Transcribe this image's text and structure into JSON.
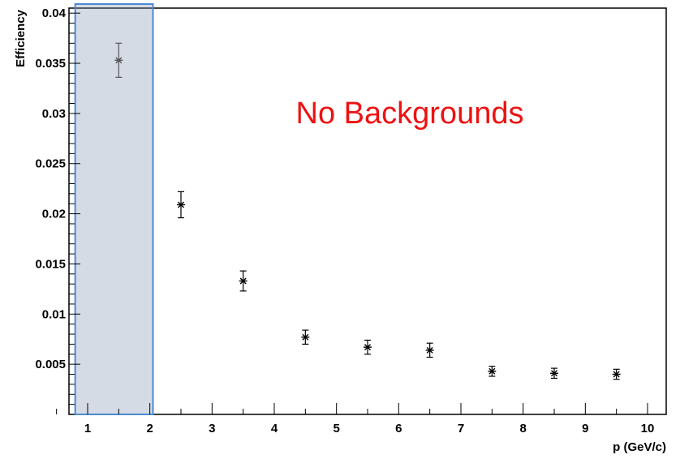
{
  "chart_data": {
    "type": "scatter",
    "xlabel": "p (GeV/c)",
    "ylabel": "Efficiency",
    "xlim": [
      0.7,
      10.3
    ],
    "ylim": [
      0,
      0.0405
    ],
    "x_ticks": [
      "1",
      "2",
      "3",
      "4",
      "5",
      "6",
      "7",
      "8",
      "9",
      "10"
    ],
    "y_ticks": [
      "0.005",
      "0.01",
      "0.015",
      "0.02",
      "0.025",
      "0.03",
      "0.035",
      "0.04"
    ],
    "series": [
      {
        "points": [
          {
            "x": 1.5,
            "y": 0.0353,
            "err": 0.0017
          },
          {
            "x": 2.5,
            "y": 0.0209,
            "err": 0.0013
          },
          {
            "x": 3.5,
            "y": 0.0133,
            "err": 0.001
          },
          {
            "x": 4.5,
            "y": 0.0077,
            "err": 0.0007
          },
          {
            "x": 5.5,
            "y": 0.0067,
            "err": 0.0007
          },
          {
            "x": 6.5,
            "y": 0.0064,
            "err": 0.0007
          },
          {
            "x": 7.5,
            "y": 0.0043,
            "err": 0.0005
          },
          {
            "x": 8.5,
            "y": 0.0041,
            "err": 0.0005
          },
          {
            "x": 9.5,
            "y": 0.004,
            "err": 0.0005
          }
        ]
      }
    ],
    "annotation": {
      "text": "No Backgrounds",
      "color": "#ee1111"
    },
    "highlight": {
      "x_range": [
        0.8,
        2.05
      ],
      "fill": "#8898b4",
      "border": "#4a8ad4"
    },
    "grid": false,
    "marker_color": "#000000"
  }
}
